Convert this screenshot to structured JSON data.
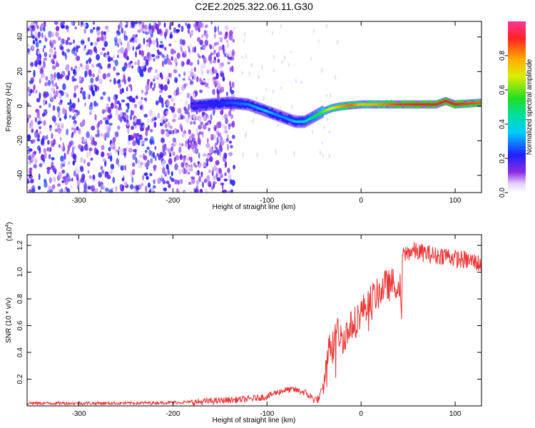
{
  "title": "C2E2.2025.322.06.11.G30",
  "colors": {
    "snr_line": "#ee3333",
    "spec_dots": "#8a2be2",
    "frame": "#000000"
  },
  "chart_data": [
    {
      "type": "heatmap",
      "name": "spectrogram",
      "xlabel": "Height of straight line (km)",
      "ylabel": "Frequency (Hz)",
      "xlim": [
        -355,
        128
      ],
      "ylim": [
        -50,
        49
      ],
      "xticks": [
        -300,
        -200,
        -100,
        0,
        100
      ],
      "xtick_labels": [
        "-300",
        "-200",
        "-100",
        "0",
        "100"
      ],
      "yticks": [
        -40,
        -20,
        0,
        20,
        40
      ],
      "ytick_labels": [
        "-40",
        "-20",
        "0",
        "20",
        "40"
      ],
      "colorbar": {
        "label": "Normalized spectral amplitude",
        "range": [
          0,
          1
        ],
        "ticks": [
          0.0,
          0.2,
          0.4,
          0.6,
          0.8
        ],
        "tick_labels": [
          "0.0",
          "0.2",
          "0.4",
          "0.6",
          "0.8"
        ]
      },
      "ridge": {
        "x": [
          -180,
          -160,
          -140,
          -120,
          -100,
          -90,
          -80,
          -70,
          -60,
          -50,
          -40,
          -30,
          -20,
          -10,
          0,
          20,
          40,
          60,
          80,
          90,
          100,
          128
        ],
        "y": [
          0,
          1,
          2,
          1,
          -3,
          -5,
          -7,
          -9,
          -9,
          -6,
          -3,
          -1,
          0,
          0.5,
          1,
          1,
          1,
          1,
          1,
          3,
          1,
          2
        ],
        "amplitude": [
          0.15,
          0.2,
          0.25,
          0.3,
          0.35,
          0.3,
          0.3,
          0.35,
          0.4,
          0.5,
          0.6,
          0.7,
          0.8,
          0.85,
          0.75,
          0.8,
          0.88,
          0.9,
          0.9,
          0.9,
          0.9,
          0.85
        ]
      },
      "noise_region": {
        "x_range": [
          -355,
          -135
        ],
        "amplitude_range": [
          0.05,
          0.25
        ]
      }
    },
    {
      "type": "line",
      "name": "snr",
      "xlabel": "Height of straight line (km)",
      "ylabel": "SNR (10 * v/v)",
      "scale_label": "(x10",
      "scale_exponent": "4",
      "xlim": [
        -355,
        128
      ],
      "ylim": [
        0,
        1.28
      ],
      "xticks": [
        -300,
        -200,
        -100,
        0,
        100
      ],
      "xtick_labels": [
        "-300",
        "-200",
        "-100",
        "0",
        "100"
      ],
      "yticks": [
        0.2,
        0.4,
        0.6,
        0.8,
        1.0,
        1.2
      ],
      "ytick_labels": [
        "0.2",
        "0.4",
        "0.6",
        "0.8",
        "1.0",
        "1.2"
      ],
      "series": [
        {
          "name": "SNR",
          "x": [
            -355,
            -300,
            -250,
            -200,
            -170,
            -150,
            -120,
            -100,
            -90,
            -80,
            -70,
            -60,
            -50,
            -45,
            -40,
            -35,
            -30,
            -25,
            -20,
            -15,
            -10,
            -5,
            0,
            5,
            10,
            15,
            20,
            25,
            30,
            35,
            40,
            42,
            43,
            44,
            50,
            55,
            60,
            70,
            80,
            90,
            100,
            110,
            120,
            128
          ],
          "y": [
            0.02,
            0.02,
            0.02,
            0.025,
            0.03,
            0.04,
            0.05,
            0.07,
            0.1,
            0.12,
            0.12,
            0.1,
            0.05,
            0.05,
            0.15,
            0.4,
            0.5,
            0.55,
            0.5,
            0.55,
            0.6,
            0.65,
            0.7,
            0.75,
            0.8,
            0.82,
            0.85,
            0.9,
            0.9,
            0.92,
            0.95,
            0.85,
            0.65,
            1.12,
            1.15,
            1.16,
            1.15,
            1.14,
            1.12,
            1.13,
            1.1,
            1.09,
            1.08,
            1.06
          ]
        }
      ]
    }
  ]
}
